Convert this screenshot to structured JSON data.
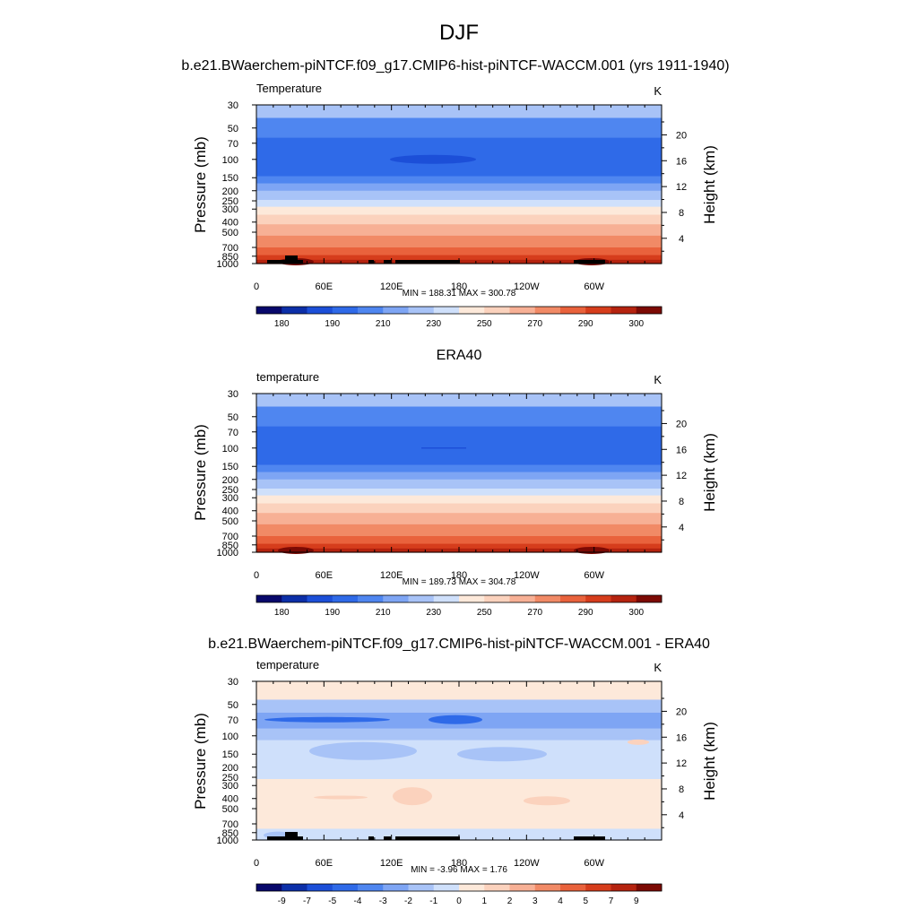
{
  "title": "DJF",
  "palette_abs": [
    "#08086b",
    "#0c2fa8",
    "#1c4fd8",
    "#2f6ae8",
    "#4f86f0",
    "#7ea5f4",
    "#a8c3f7",
    "#cfe0fb",
    "#fde9da",
    "#fbd2bd",
    "#f7b095",
    "#f18a66",
    "#e9623c",
    "#d63d1c",
    "#b5230f",
    "#7c0a04"
  ],
  "palette_diff": [
    "#08086b",
    "#0c2fa8",
    "#1c4fd8",
    "#2f6ae8",
    "#4f86f0",
    "#7ea5f4",
    "#a8c3f7",
    "#cfe0fb",
    "#fde9da",
    "#fbd2bd",
    "#f7b095",
    "#f18a66",
    "#e9623c",
    "#d63d1c",
    "#b5230f",
    "#7c0a04"
  ],
  "chart_data": [
    {
      "type": "heatmap",
      "header": "b.e21.BWaerchem-piNTCF.f09_g17.CMIP6-hist-piNTCF-WACCM.001 (yrs 1911-1940)",
      "left_label": "Temperature",
      "units": "K",
      "ylabel": "Pressure (mb)",
      "ylabel_right": "Height (km)",
      "x_ticks": [
        "0",
        "60E",
        "120E",
        "180",
        "120W",
        "60W"
      ],
      "y_ticks": [
        "30",
        "50",
        "70",
        "100",
        "150",
        "200",
        "250",
        "300",
        "400",
        "500",
        "700",
        "850",
        "1000"
      ],
      "height_ticks": [
        "4",
        "8",
        "12",
        "16",
        "20"
      ],
      "stats": "MIN = 188.31  MAX = 300.78",
      "colorbar_labels": [
        "180",
        "190",
        "210",
        "230",
        "250",
        "270",
        "290",
        "300"
      ],
      "colorbar_levels": [
        175,
        180,
        185,
        190,
        200,
        210,
        220,
        230,
        240,
        250,
        260,
        270,
        280,
        290,
        295,
        300
      ],
      "min": 188.31,
      "max": 300.78,
      "topography": true
    },
    {
      "type": "heatmap",
      "header": "ERA40",
      "left_label": "temperature",
      "units": "K",
      "ylabel": "Pressure (mb)",
      "ylabel_right": "Height (km)",
      "x_ticks": [
        "0",
        "60E",
        "120E",
        "180",
        "120W",
        "60W"
      ],
      "y_ticks": [
        "30",
        "50",
        "70",
        "100",
        "150",
        "200",
        "250",
        "300",
        "400",
        "500",
        "700",
        "850",
        "1000"
      ],
      "height_ticks": [
        "4",
        "8",
        "12",
        "16",
        "20"
      ],
      "stats": "MIN = 189.73  MAX = 304.78",
      "colorbar_labels": [
        "180",
        "190",
        "210",
        "230",
        "250",
        "270",
        "290",
        "300"
      ],
      "colorbar_levels": [
        175,
        180,
        185,
        190,
        200,
        210,
        220,
        230,
        240,
        250,
        260,
        270,
        280,
        290,
        295,
        300
      ],
      "min": 189.73,
      "max": 304.78,
      "topography": false
    },
    {
      "type": "heatmap",
      "header": "b.e21.BWaerchem-piNTCF.f09_g17.CMIP6-hist-piNTCF-WACCM.001 - ERA40",
      "left_label": "temperature",
      "units": "K",
      "ylabel": "Pressure (mb)",
      "ylabel_right": "Height (km)",
      "x_ticks": [
        "0",
        "60E",
        "120E",
        "180",
        "120W",
        "60W"
      ],
      "y_ticks": [
        "30",
        "50",
        "70",
        "100",
        "150",
        "200",
        "250",
        "300",
        "400",
        "500",
        "700",
        "850",
        "1000"
      ],
      "height_ticks": [
        "4",
        "8",
        "12",
        "16",
        "20"
      ],
      "stats": "MIN =  -3.96  MAX =    1.76",
      "colorbar_labels": [
        "-9",
        "-7",
        "-5",
        "-4",
        "-3",
        "-2",
        "-1",
        "0",
        "1",
        "2",
        "3",
        "4",
        "5",
        "7",
        "9"
      ],
      "colorbar_levels": [
        -9,
        -7,
        -5,
        -4,
        -3,
        -2,
        -1,
        0,
        1,
        2,
        3,
        4,
        5,
        7,
        9
      ],
      "min": -3.96,
      "max": 1.76,
      "topography": true
    }
  ]
}
